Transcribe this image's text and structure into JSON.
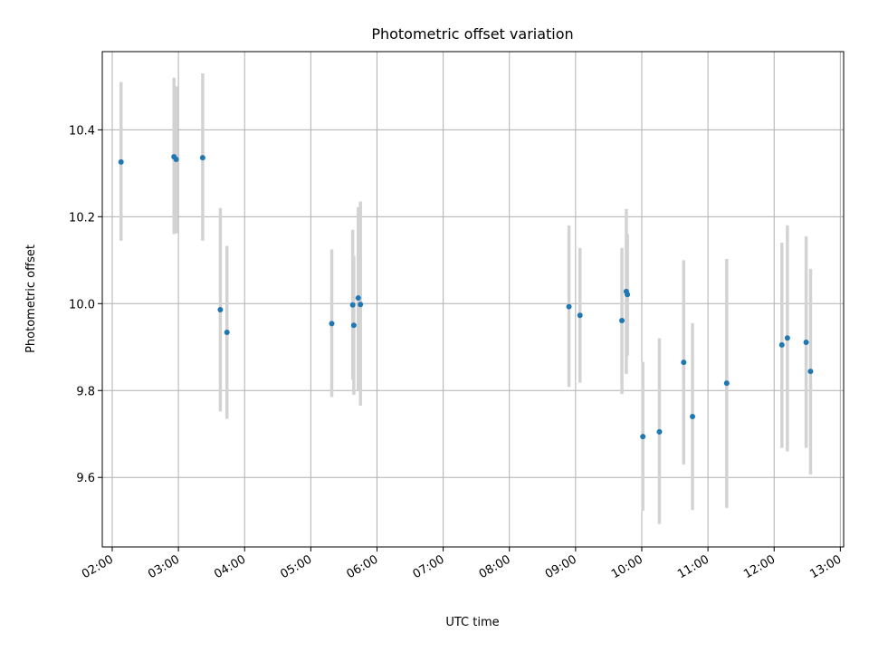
{
  "chart_data": {
    "type": "scatter",
    "title": "Photometric offset variation",
    "xlabel": "UTC time",
    "ylabel": "Photometric offset",
    "x_axis": {
      "kind": "time",
      "range": [
        "01:51",
        "13:03"
      ],
      "ticks": [
        "02:00",
        "03:00",
        "04:00",
        "05:00",
        "06:00",
        "07:00",
        "08:00",
        "09:00",
        "10:00",
        "11:00",
        "12:00",
        "13:00"
      ]
    },
    "y_axis": {
      "range": [
        9.44,
        10.58
      ],
      "ticks": [
        9.6,
        9.8,
        10.0,
        10.2,
        10.4
      ],
      "tick_labels": [
        "9.6",
        "9.8",
        "10.0",
        "10.2",
        "10.4"
      ]
    },
    "grid": true,
    "colors": {
      "point": "#1f77b4",
      "errorbar": "#d3d3d3"
    },
    "series": [
      {
        "points": [
          {
            "time": "02:08",
            "y": 10.326,
            "lo": 10.145,
            "hi": 10.51
          },
          {
            "time": "02:56",
            "y": 10.338,
            "lo": 10.16,
            "hi": 10.52
          },
          {
            "time": "02:58",
            "y": 10.332,
            "lo": 10.162,
            "hi": 10.5
          },
          {
            "time": "03:22",
            "y": 10.336,
            "lo": 10.145,
            "hi": 10.53
          },
          {
            "time": "03:38",
            "y": 9.986,
            "lo": 9.752,
            "hi": 10.22
          },
          {
            "time": "03:44",
            "y": 9.934,
            "lo": 9.735,
            "hi": 10.133
          },
          {
            "time": "05:19",
            "y": 9.954,
            "lo": 9.785,
            "hi": 10.125
          },
          {
            "time": "05:38",
            "y": 9.997,
            "lo": 9.825,
            "hi": 10.17
          },
          {
            "time": "05:39",
            "y": 9.95,
            "lo": 9.79,
            "hi": 10.11
          },
          {
            "time": "05:43",
            "y": 10.013,
            "lo": 9.8,
            "hi": 10.222
          },
          {
            "time": "05:45",
            "y": 9.998,
            "lo": 9.765,
            "hi": 10.235
          },
          {
            "time": "08:54",
            "y": 9.993,
            "lo": 9.808,
            "hi": 10.18
          },
          {
            "time": "09:04",
            "y": 9.973,
            "lo": 9.818,
            "hi": 10.128
          },
          {
            "time": "09:42",
            "y": 9.961,
            "lo": 9.792,
            "hi": 10.128
          },
          {
            "time": "09:46",
            "y": 10.028,
            "lo": 9.838,
            "hi": 10.218
          },
          {
            "time": "09:47",
            "y": 10.021,
            "lo": 9.88,
            "hi": 10.16
          },
          {
            "time": "10:01",
            "y": 9.694,
            "lo": 9.523,
            "hi": 9.866
          },
          {
            "time": "10:16",
            "y": 9.705,
            "lo": 9.493,
            "hi": 9.92
          },
          {
            "time": "10:38",
            "y": 9.865,
            "lo": 9.63,
            "hi": 10.1
          },
          {
            "time": "10:46",
            "y": 9.74,
            "lo": 9.525,
            "hi": 9.955
          },
          {
            "time": "11:17",
            "y": 9.817,
            "lo": 9.53,
            "hi": 10.103
          },
          {
            "time": "12:07",
            "y": 9.905,
            "lo": 9.668,
            "hi": 10.14
          },
          {
            "time": "12:12",
            "y": 9.921,
            "lo": 9.66,
            "hi": 10.18
          },
          {
            "time": "12:29",
            "y": 9.911,
            "lo": 9.668,
            "hi": 10.155
          },
          {
            "time": "12:33",
            "y": 9.844,
            "lo": 9.607,
            "hi": 10.08
          }
        ]
      }
    ]
  }
}
